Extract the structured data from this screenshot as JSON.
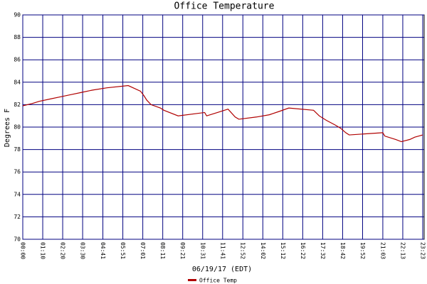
{
  "chart_data": {
    "type": "line",
    "title": "Office Temperature",
    "y_label": "Degrees F",
    "x_label": "06/19/17 (EDT)",
    "x": [
      0,
      33,
      58,
      95,
      133,
      170,
      208,
      245,
      295,
      370,
      413,
      425,
      435,
      450,
      483,
      495,
      545,
      638,
      645,
      683,
      720,
      745,
      758,
      820,
      865,
      900,
      933,
      1020,
      1040,
      1065,
      1095,
      1115,
      1133,
      1145,
      1263,
      1270,
      1308,
      1328,
      1358,
      1375,
      1403
    ],
    "series": [
      {
        "name": "Office Temp",
        "color": "#b00000",
        "values": [
          81.9,
          82.1,
          82.3,
          82.5,
          82.7,
          82.9,
          83.1,
          83.3,
          83.5,
          83.7,
          83.2,
          82.8,
          82.4,
          82.0,
          81.7,
          81.5,
          81.0,
          81.3,
          81.0,
          81.3,
          81.6,
          80.9,
          80.7,
          80.9,
          81.1,
          81.4,
          81.7,
          81.5,
          81.0,
          80.6,
          80.2,
          79.9,
          79.5,
          79.3,
          79.5,
          79.2,
          78.9,
          78.7,
          78.9,
          79.1,
          79.3
        ]
      }
    ],
    "xlim": [
      0,
      1408
    ],
    "xticks": [
      {
        "value": 0,
        "label": "00:00"
      },
      {
        "value": 70,
        "label": "01:10"
      },
      {
        "value": 140,
        "label": "02:20"
      },
      {
        "value": 210,
        "label": "03:30"
      },
      {
        "value": 281,
        "label": "04:41"
      },
      {
        "value": 351,
        "label": "05:51"
      },
      {
        "value": 421,
        "label": "07:01"
      },
      {
        "value": 491,
        "label": "08:11"
      },
      {
        "value": 561,
        "label": "09:21"
      },
      {
        "value": 631,
        "label": "10:31"
      },
      {
        "value": 701,
        "label": "11:41"
      },
      {
        "value": 772,
        "label": "12:52"
      },
      {
        "value": 842,
        "label": "14:02"
      },
      {
        "value": 912,
        "label": "15:12"
      },
      {
        "value": 982,
        "label": "16:22"
      },
      {
        "value": 1052,
        "label": "17:32"
      },
      {
        "value": 1122,
        "label": "18:42"
      },
      {
        "value": 1192,
        "label": "19:52"
      },
      {
        "value": 1263,
        "label": "21:03"
      },
      {
        "value": 1333,
        "label": "22:13"
      },
      {
        "value": 1403,
        "label": "23:23"
      }
    ],
    "ylim": [
      70,
      90
    ],
    "yticks": [
      70,
      72,
      74,
      76,
      78,
      80,
      82,
      84,
      86,
      88,
      90
    ],
    "grid": true,
    "grid_color": "#000080"
  }
}
